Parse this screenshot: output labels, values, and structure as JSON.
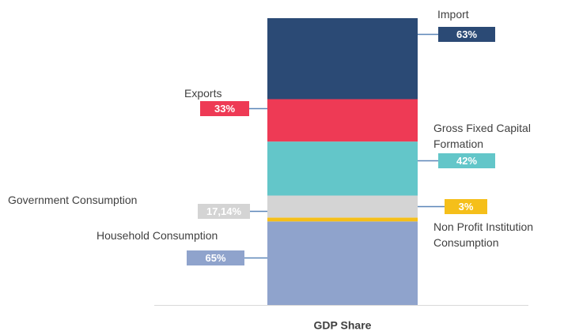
{
  "chart_data": {
    "type": "stacked-bar",
    "categories": [
      "GDP Share"
    ],
    "series": [
      {
        "name": "Household Consumption",
        "color": "#8fa3cc",
        "values": [
          65
        ],
        "value_labels": [
          "65%"
        ]
      },
      {
        "name": "Non Profit Institution Consumption",
        "color": "#f5bf1a",
        "values": [
          3
        ],
        "value_labels": [
          "3%"
        ]
      },
      {
        "name": "Government Consumption",
        "color": "#d4d4d4",
        "values": [
          17.14
        ],
        "value_labels": [
          "17,14%"
        ]
      },
      {
        "name": "Gross Fixed Capital Formation",
        "color": "#63c6c9",
        "values": [
          42
        ],
        "value_labels": [
          "42%"
        ]
      },
      {
        "name": "Exports",
        "color": "#ee3a55",
        "values": [
          33
        ],
        "value_labels": [
          "33%"
        ]
      },
      {
        "name": "Import",
        "color": "#2b4a75",
        "values": [
          63
        ],
        "value_labels": [
          "63%"
        ]
      }
    ]
  }
}
